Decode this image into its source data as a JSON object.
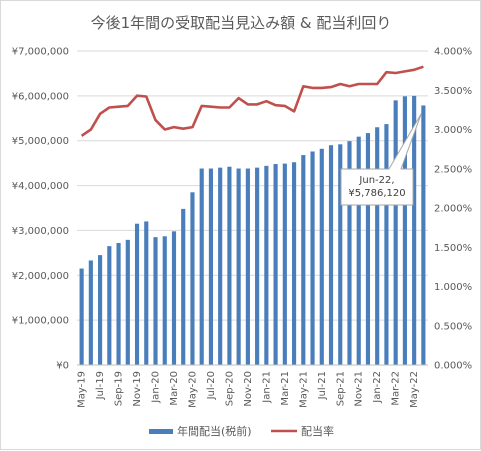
{
  "chart_data": {
    "type": "bar+line",
    "title": "今後1年間の受取配当見込み額 & 配当利回り",
    "x": [
      "May-19",
      "Jun-19",
      "Jul-19",
      "Aug-19",
      "Sep-19",
      "Oct-19",
      "Nov-19",
      "Dec-19",
      "Jan-20",
      "Feb-20",
      "Mar-20",
      "Apr-20",
      "May-20",
      "Jun-20",
      "Jul-20",
      "Aug-20",
      "Sep-20",
      "Oct-20",
      "Nov-20",
      "Dec-20",
      "Jan-21",
      "Feb-21",
      "Mar-21",
      "Apr-21",
      "May-21",
      "Jun-21",
      "Jul-21",
      "Aug-21",
      "Sep-21",
      "Oct-21",
      "Nov-21",
      "Dec-21",
      "Jan-22",
      "Feb-22",
      "Mar-22",
      "Apr-22",
      "May-22",
      "Jun-22"
    ],
    "x_tick_labels": [
      "May-19",
      "Jul-19",
      "Sep-19",
      "Nov-19",
      "Jan-20",
      "Mar-20",
      "May-20",
      "Jul-20",
      "Sep-20",
      "Nov-20",
      "Jan-21",
      "Mar-21",
      "May-21",
      "Jul-21",
      "Sep-21",
      "Nov-21",
      "Jan-22",
      "Mar-22",
      "May-22"
    ],
    "series": [
      {
        "name": "年間配当(税前)",
        "type": "bar",
        "axis": "left",
        "color": "#4a7ebb",
        "values": [
          2150000,
          2330000,
          2450000,
          2650000,
          2720000,
          2790000,
          3150000,
          3200000,
          2850000,
          2870000,
          2980000,
          3480000,
          3850000,
          4380000,
          4380000,
          4400000,
          4420000,
          4380000,
          4380000,
          4400000,
          4440000,
          4480000,
          4490000,
          4520000,
          4680000,
          4760000,
          4820000,
          4900000,
          4920000,
          4990000,
          5090000,
          5170000,
          5300000,
          5370000,
          5900000,
          5990000,
          6000000,
          5786120
        ]
      },
      {
        "name": "配当率",
        "type": "line",
        "axis": "right",
        "color": "#c0504d",
        "values": [
          0.0292,
          0.03,
          0.032,
          0.0328,
          0.0329,
          0.033,
          0.0343,
          0.0342,
          0.0312,
          0.03,
          0.0303,
          0.0301,
          0.0303,
          0.033,
          0.0329,
          0.0328,
          0.0328,
          0.034,
          0.0332,
          0.0332,
          0.0336,
          0.0331,
          0.033,
          0.0323,
          0.0355,
          0.0353,
          0.0353,
          0.0354,
          0.0358,
          0.0355,
          0.0358,
          0.0358,
          0.0358,
          0.0373,
          0.0372,
          0.0374,
          0.0376,
          0.038
        ]
      }
    ],
    "y_left": {
      "range": [
        0,
        7000000
      ],
      "ticks": [
        0,
        1000000,
        2000000,
        3000000,
        4000000,
        5000000,
        6000000,
        7000000
      ],
      "tick_labels": [
        "¥0",
        "¥1,000,000",
        "¥2,000,000",
        "¥3,000,000",
        "¥4,000,000",
        "¥5,000,000",
        "¥6,000,000",
        "¥7,000,000"
      ]
    },
    "y_right": {
      "range": [
        0,
        0.04
      ],
      "ticks": [
        0,
        0.005,
        0.01,
        0.015,
        0.02,
        0.025,
        0.03,
        0.035,
        0.04
      ],
      "tick_labels": [
        "0.000%",
        "0.500%",
        "1.000%",
        "1.500%",
        "2.000%",
        "2.500%",
        "3.000%",
        "3.500%",
        "4.000%"
      ]
    },
    "grid": true,
    "legend": "bottom",
    "annotation": {
      "target_index": 37,
      "lines": [
        "Jun-22,",
        "¥5,786,120"
      ]
    }
  }
}
